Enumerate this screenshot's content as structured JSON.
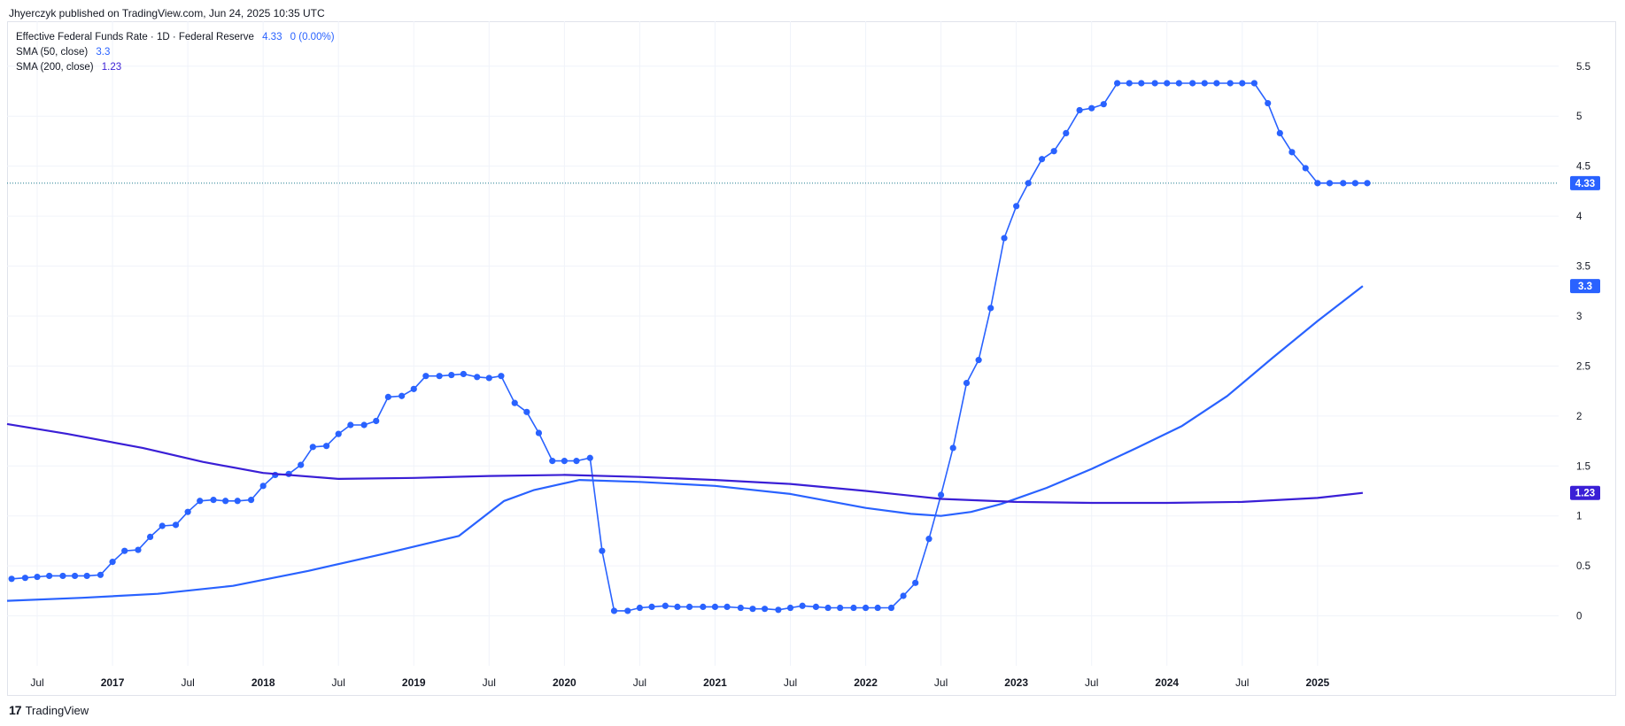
{
  "header": {
    "published": "Jhyerczyk published on TradingView.com, Jun 24, 2025 10:35 UTC"
  },
  "legend": {
    "symbol": "Effective Federal Funds Rate · 1D · Federal Reserve",
    "last": "4.33",
    "change": "0 (0.00%)",
    "sma50_label": "SMA (50, close)",
    "sma50_value": "3.3",
    "sma200_label": "SMA (200, close)",
    "sma200_value": "1.23"
  },
  "footer": {
    "logo": "17",
    "brand": "TradingView"
  },
  "colors": {
    "price": "#2962ff",
    "sma50": "#2962ff",
    "sma200": "#3a1fd6",
    "grid": "#f0f3fa",
    "text": "#131722"
  },
  "chart_data": {
    "type": "line",
    "x_range": [
      2016.3,
      2026.6
    ],
    "ylim": [
      -0.5,
      5.95
    ],
    "y_ticks": [
      0,
      0.5,
      1,
      1.5,
      2,
      2.5,
      3,
      3.5,
      4,
      4.5,
      5,
      5.5
    ],
    "y_tick_labels": [
      "0",
      "0.5",
      "1",
      "1.5",
      "2",
      "2.5",
      "3",
      "3.5",
      "4",
      "4.5",
      "5",
      "5.5"
    ],
    "x_ticks": [
      {
        "x": 2016.5,
        "label": "Jul",
        "bold": false
      },
      {
        "x": 2017.0,
        "label": "2017",
        "bold": true
      },
      {
        "x": 2017.5,
        "label": "Jul",
        "bold": false
      },
      {
        "x": 2018.0,
        "label": "2018",
        "bold": true
      },
      {
        "x": 2018.5,
        "label": "Jul",
        "bold": false
      },
      {
        "x": 2019.0,
        "label": "2019",
        "bold": true
      },
      {
        "x": 2019.5,
        "label": "Jul",
        "bold": false
      },
      {
        "x": 2020.0,
        "label": "2020",
        "bold": true
      },
      {
        "x": 2020.5,
        "label": "Jul",
        "bold": false
      },
      {
        "x": 2021.0,
        "label": "2021",
        "bold": true
      },
      {
        "x": 2021.5,
        "label": "Jul",
        "bold": false
      },
      {
        "x": 2022.0,
        "label": "2022",
        "bold": true
      },
      {
        "x": 2022.5,
        "label": "Jul",
        "bold": false
      },
      {
        "x": 2023.0,
        "label": "2023",
        "bold": true
      },
      {
        "x": 2023.5,
        "label": "Jul",
        "bold": false
      },
      {
        "x": 2024.0,
        "label": "2024",
        "bold": true
      },
      {
        "x": 2024.5,
        "label": "Jul",
        "bold": false
      },
      {
        "x": 2025.0,
        "label": "2025",
        "bold": true
      }
    ],
    "last_value_line": 4.33,
    "price_labels": [
      {
        "value": 4.33,
        "text": "4.33",
        "color": "#2962ff"
      },
      {
        "value": 3.3,
        "text": "3.3",
        "color": "#2962ff"
      },
      {
        "value": 1.23,
        "text": "1.23",
        "color": "#3a1fd6"
      }
    ],
    "series": [
      {
        "name": "Effective Federal Funds Rate",
        "markers": true,
        "x": [
          2016.33,
          2016.42,
          2016.5,
          2016.58,
          2016.67,
          2016.75,
          2016.83,
          2016.92,
          2017.0,
          2017.08,
          2017.17,
          2017.25,
          2017.33,
          2017.42,
          2017.5,
          2017.58,
          2017.67,
          2017.75,
          2017.83,
          2017.92,
          2018.0,
          2018.08,
          2018.17,
          2018.25,
          2018.33,
          2018.42,
          2018.5,
          2018.58,
          2018.67,
          2018.75,
          2018.83,
          2018.92,
          2019.0,
          2019.08,
          2019.17,
          2019.25,
          2019.33,
          2019.42,
          2019.5,
          2019.58,
          2019.67,
          2019.75,
          2019.83,
          2019.92,
          2020.0,
          2020.08,
          2020.17,
          2020.25,
          2020.33,
          2020.42,
          2020.5,
          2020.58,
          2020.67,
          2020.75,
          2020.83,
          2020.92,
          2021.0,
          2021.08,
          2021.17,
          2021.25,
          2021.33,
          2021.42,
          2021.5,
          2021.58,
          2021.67,
          2021.75,
          2021.83,
          2021.92,
          2022.0,
          2022.08,
          2022.17,
          2022.25,
          2022.33,
          2022.42,
          2022.5,
          2022.58,
          2022.67,
          2022.75,
          2022.83,
          2022.92,
          2023.0,
          2023.08,
          2023.17,
          2023.25,
          2023.33,
          2023.42,
          2023.5,
          2023.58,
          2023.67,
          2023.75,
          2023.83,
          2023.92,
          2024.0,
          2024.08,
          2024.17,
          2024.25,
          2024.33,
          2024.42,
          2024.5,
          2024.58,
          2024.67,
          2024.75,
          2024.83,
          2024.92,
          2025.0,
          2025.08,
          2025.17,
          2025.25,
          2025.33
        ],
        "y": [
          0.37,
          0.38,
          0.39,
          0.4,
          0.4,
          0.4,
          0.4,
          0.41,
          0.54,
          0.65,
          0.66,
          0.79,
          0.9,
          0.91,
          1.04,
          1.15,
          1.16,
          1.15,
          1.15,
          1.16,
          1.3,
          1.41,
          1.42,
          1.51,
          1.69,
          1.7,
          1.82,
          1.91,
          1.91,
          1.95,
          2.19,
          2.2,
          2.27,
          2.4,
          2.4,
          2.41,
          2.42,
          2.39,
          2.38,
          2.4,
          2.13,
          2.04,
          1.83,
          1.55,
          1.55,
          1.55,
          1.58,
          0.65,
          0.05,
          0.05,
          0.08,
          0.09,
          0.1,
          0.09,
          0.09,
          0.09,
          0.09,
          0.09,
          0.08,
          0.07,
          0.07,
          0.06,
          0.08,
          0.1,
          0.09,
          0.08,
          0.08,
          0.08,
          0.08,
          0.08,
          0.08,
          0.2,
          0.33,
          0.77,
          1.21,
          1.68,
          2.33,
          2.56,
          3.08,
          3.78,
          4.1,
          4.33,
          4.57,
          4.65,
          4.83,
          5.06,
          5.08,
          5.12,
          5.33,
          5.33,
          5.33,
          5.33,
          5.33,
          5.33,
          5.33,
          5.33,
          5.33,
          5.33,
          5.33,
          5.33,
          5.13,
          4.83,
          4.64,
          4.48,
          4.33,
          4.33,
          4.33,
          4.33,
          4.33
        ]
      },
      {
        "name": "SMA (50, close)",
        "markers": false,
        "x": [
          2016.3,
          2016.8,
          2017.3,
          2017.8,
          2018.3,
          2018.8,
          2019.3,
          2019.6,
          2019.8,
          2020.1,
          2020.5,
          2021.0,
          2021.5,
          2022.0,
          2022.3,
          2022.5,
          2022.7,
          2022.9,
          2023.2,
          2023.5,
          2023.8,
          2024.1,
          2024.4,
          2024.7,
          2025.0,
          2025.3
        ],
        "y": [
          0.15,
          0.18,
          0.22,
          0.3,
          0.45,
          0.62,
          0.8,
          1.15,
          1.26,
          1.36,
          1.34,
          1.3,
          1.22,
          1.08,
          1.02,
          1.0,
          1.04,
          1.12,
          1.28,
          1.47,
          1.68,
          1.9,
          2.2,
          2.58,
          2.95,
          3.3
        ]
      },
      {
        "name": "SMA (200, close)",
        "markers": false,
        "x": [
          2016.3,
          2016.7,
          2017.2,
          2017.6,
          2018.0,
          2018.5,
          2019.0,
          2019.5,
          2020.0,
          2020.5,
          2021.0,
          2021.5,
          2022.0,
          2022.5,
          2023.0,
          2023.5,
          2024.0,
          2024.5,
          2025.0,
          2025.3
        ],
        "y": [
          1.92,
          1.82,
          1.68,
          1.54,
          1.43,
          1.37,
          1.38,
          1.4,
          1.41,
          1.39,
          1.36,
          1.32,
          1.25,
          1.17,
          1.14,
          1.13,
          1.13,
          1.14,
          1.18,
          1.23
        ]
      }
    ]
  }
}
